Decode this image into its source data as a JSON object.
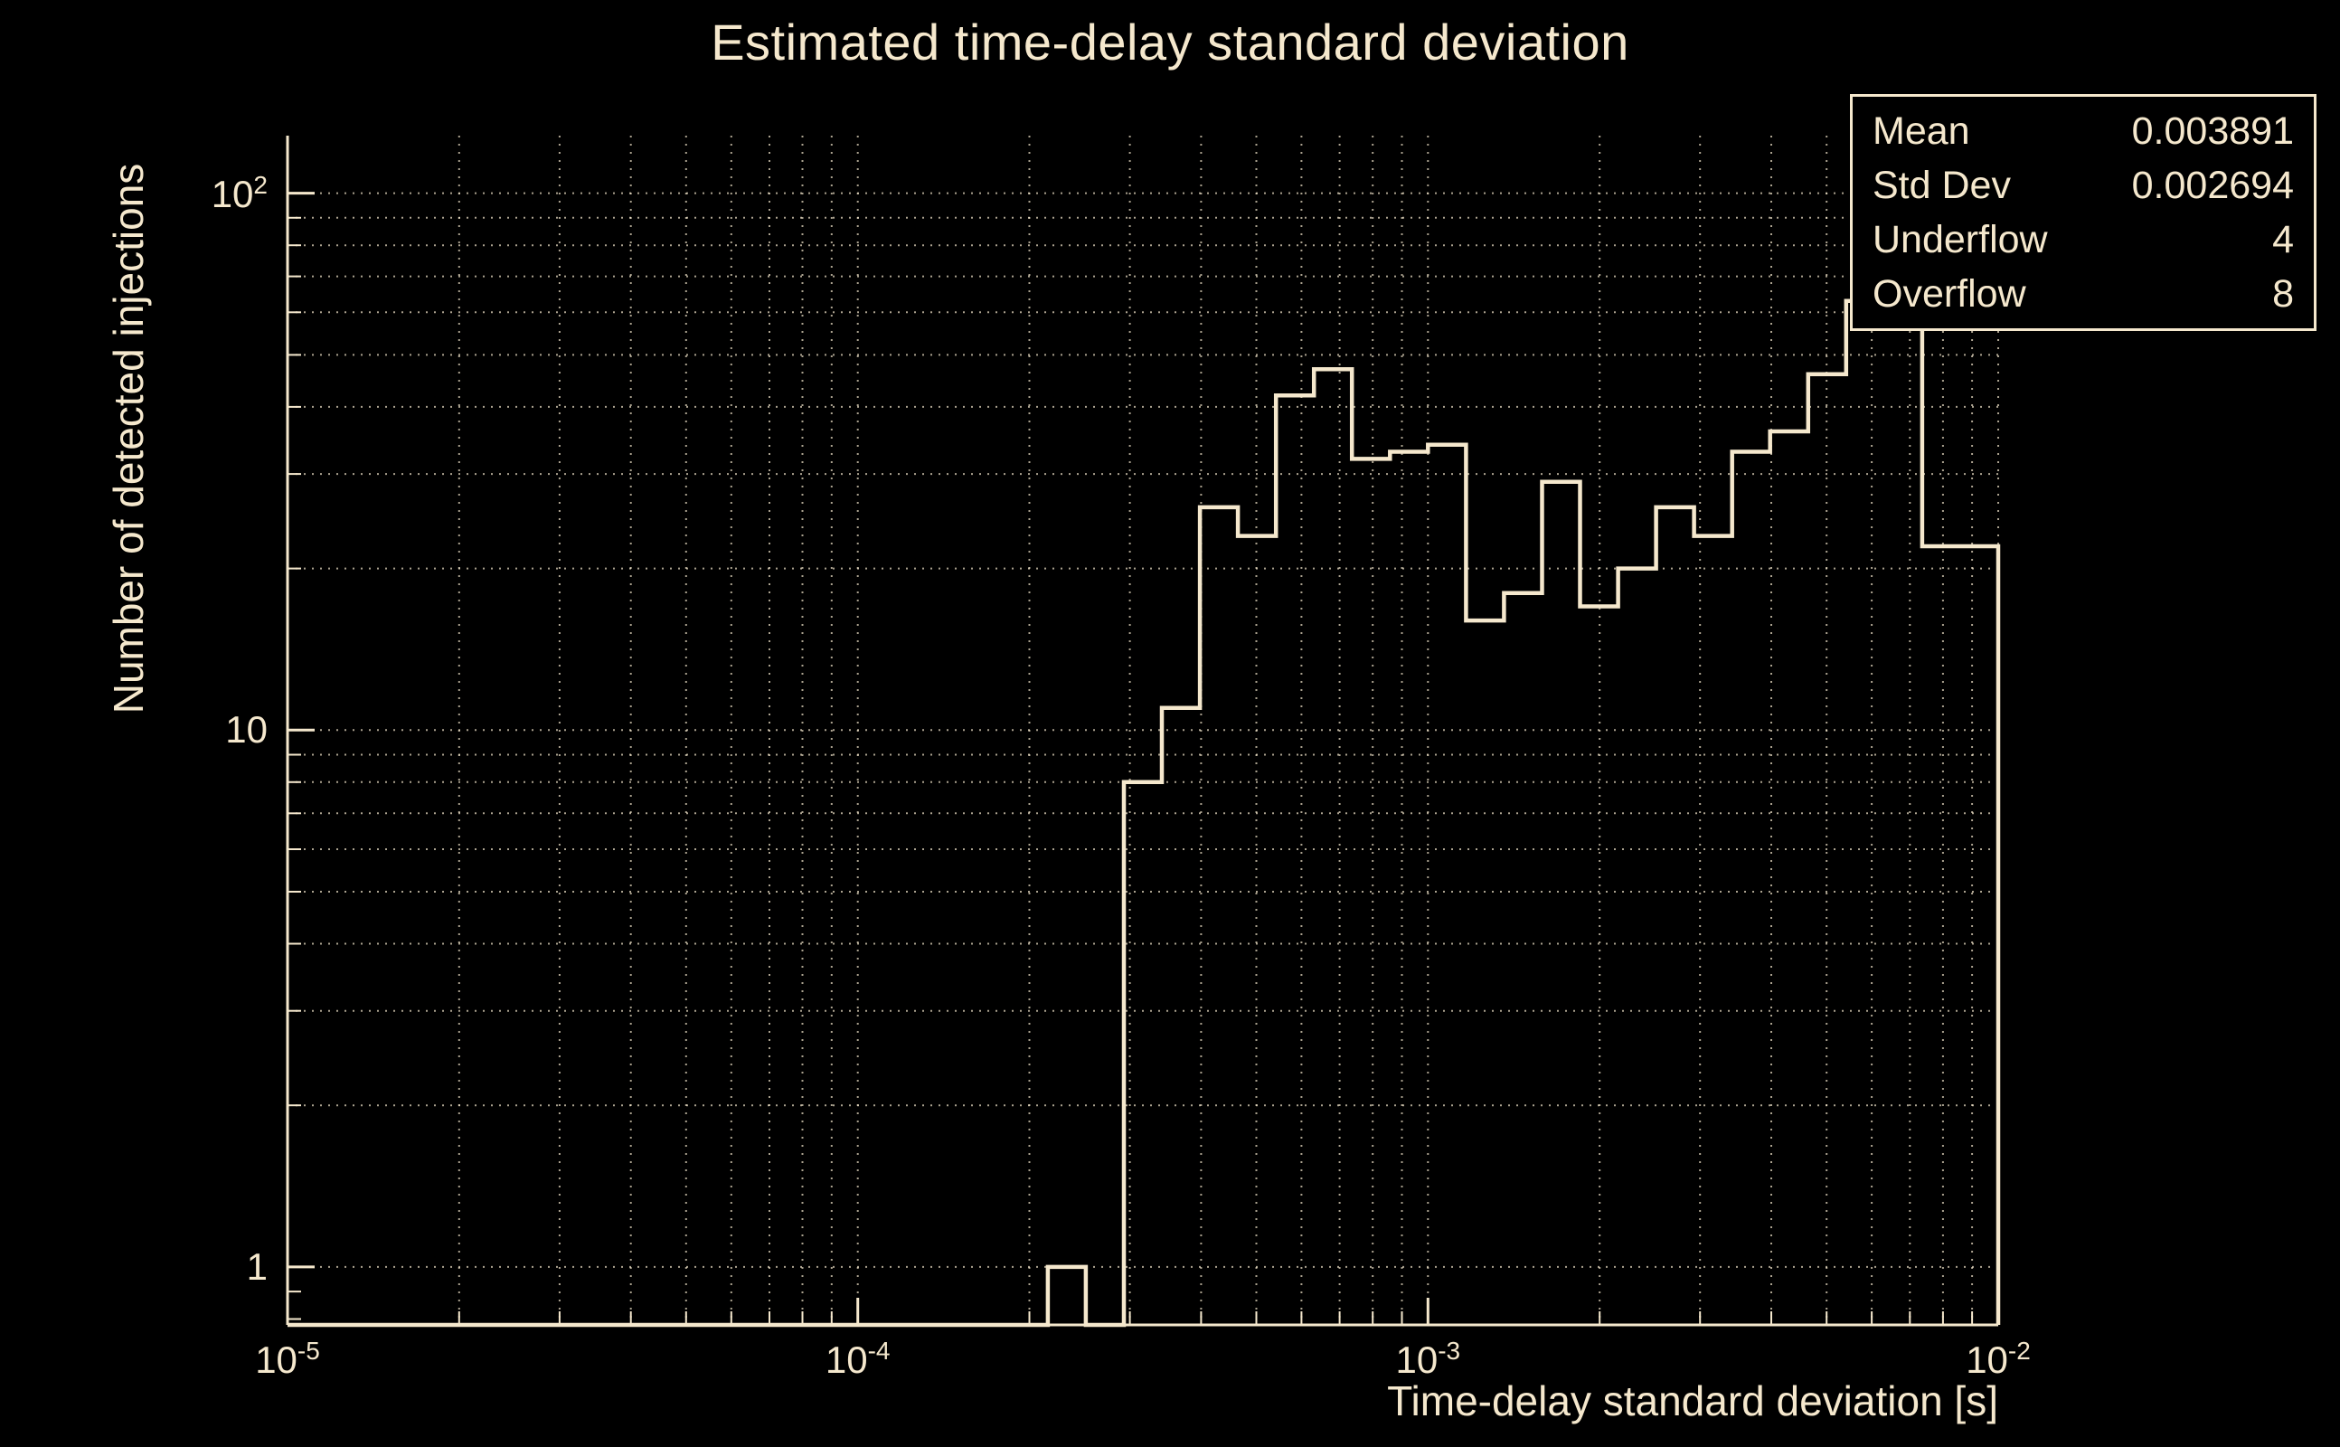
{
  "chart_data": {
    "type": "histogram",
    "title": "Estimated time-delay standard deviation",
    "xlabel": "Time-delay standard deviation [s]",
    "ylabel": "Number of detected injections",
    "xscale": "log",
    "yscale": "log",
    "xlim": [
      1e-05,
      0.01
    ],
    "ylim": [
      0.78,
      128
    ],
    "grid": true,
    "legend_position": "none",
    "x_major_ticks": [
      {
        "value": 1e-05,
        "mantissa": "10",
        "exponent": "-5"
      },
      {
        "value": 0.0001,
        "mantissa": "10",
        "exponent": "-4"
      },
      {
        "value": 0.001,
        "mantissa": "10",
        "exponent": "-3"
      },
      {
        "value": 0.01,
        "mantissa": "10",
        "exponent": "-2"
      }
    ],
    "y_major_ticks": [
      {
        "value": 1,
        "mantissa": "1",
        "exponent": ""
      },
      {
        "value": 10,
        "mantissa": "10",
        "exponent": ""
      },
      {
        "value": 100,
        "mantissa": "10",
        "exponent": "2"
      }
    ],
    "bins": {
      "xmin_exponent": -5,
      "xmax_exponent": -2,
      "spacing": "log",
      "count": 45,
      "counts": [
        0,
        0,
        0,
        0,
        0,
        0,
        0,
        0,
        0,
        0,
        0,
        0,
        0,
        0,
        0,
        0,
        0,
        0,
        0,
        0,
        1,
        0,
        8,
        11,
        26,
        23,
        42,
        47,
        32,
        33,
        34,
        16,
        18,
        29,
        17,
        20,
        26,
        23,
        33,
        36,
        46,
        63,
        85,
        22,
        22
      ]
    },
    "stats": {
      "rows": [
        {
          "label": "Mean",
          "value": "0.003891"
        },
        {
          "label": "Std Dev",
          "value": "0.002694"
        },
        {
          "label": "Underflow",
          "value": "4"
        },
        {
          "label": "Overflow",
          "value": "8"
        }
      ]
    },
    "colors": {
      "background": "#000000",
      "foreground": "#f5e8cd",
      "grid": "#f5e8cd"
    }
  }
}
